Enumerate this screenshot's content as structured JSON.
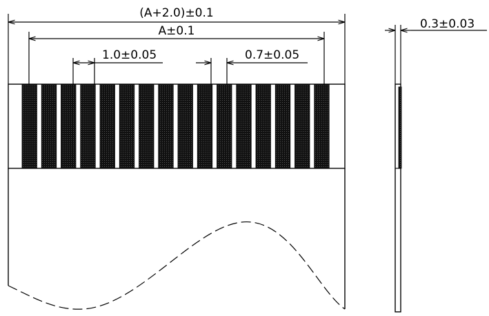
{
  "drawing": {
    "dim_overall": "(A+2.0)±0.1",
    "dim_pitch_span": "A±0.1",
    "dim_pitch": "1.0±0.05",
    "dim_contact_width": "0.7±0.05",
    "dim_thickness": "0.3±0.03",
    "contact_count": 16,
    "colors": {
      "line": "#000000",
      "contact_fill": "#111111",
      "background": "#ffffff"
    }
  }
}
